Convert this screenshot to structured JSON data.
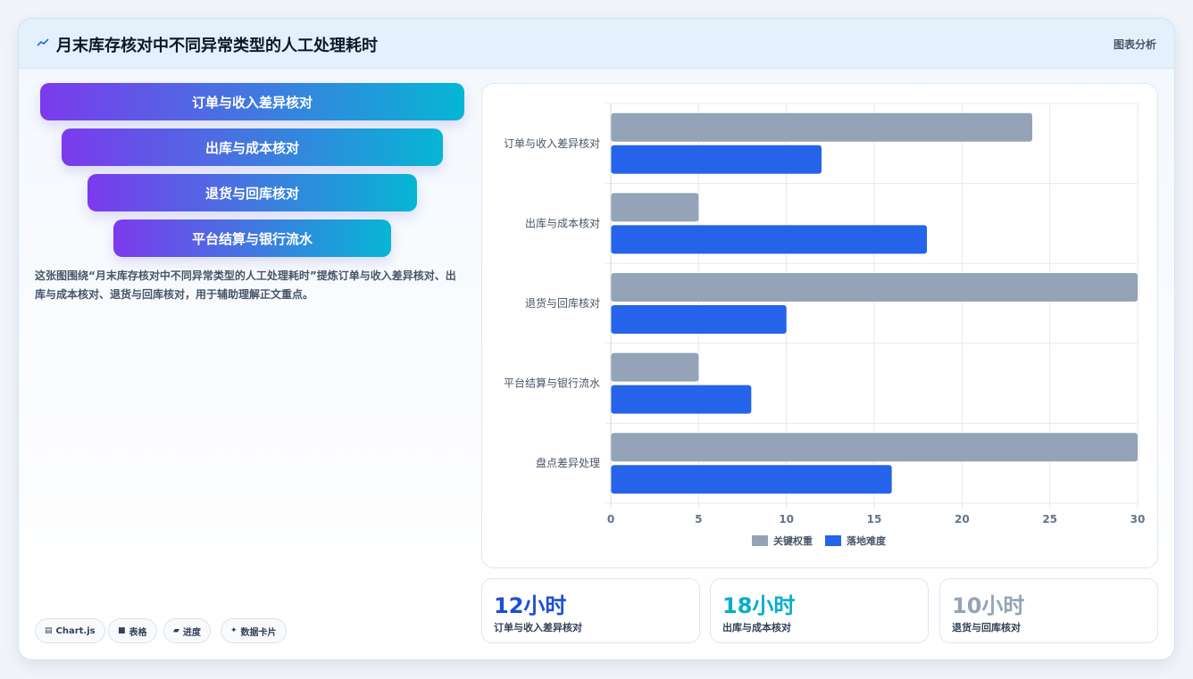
{
  "header": {
    "title": "月末库存核对中不同异常类型的人工处理耗时",
    "tag": "图表分析"
  },
  "funnel": [
    "订单与收入差异核对",
    "出库与成本核对",
    "退货与回库核对",
    "平台结算与银行流水"
  ],
  "description": "这张图围绕“月末库存核对中不同异常类型的人工处理耗时”提炼订单与收入差异核对、出库与成本核对、退货与回库核对，用于辅助理解正文重点。",
  "chips": [
    {
      "icon": "▤",
      "label": "Chart.js"
    },
    {
      "icon": "■",
      "label": "表格"
    },
    {
      "icon": "▰",
      "label": "进度"
    },
    {
      "icon": "✦",
      "label": "数据卡片"
    }
  ],
  "stats": [
    {
      "value": "12小时",
      "label": "订单与收入差异核对",
      "color": "#1d4ed8"
    },
    {
      "value": "18小时",
      "label": "出库与成本核对",
      "color": "#06aecb"
    },
    {
      "value": "10小时",
      "label": "退货与回库核对",
      "color": "#94a3b8"
    }
  ],
  "chart_data": {
    "type": "bar",
    "orientation": "horizontal",
    "categories": [
      "订单与收入差异核对",
      "出库与成本核对",
      "退货与回库核对",
      "平台结算与银行流水",
      "盘点差异处理"
    ],
    "series": [
      {
        "name": "关键权重",
        "color": "#94a3b8",
        "values": [
          24,
          5,
          30,
          5,
          30
        ]
      },
      {
        "name": "落地难度",
        "color": "#2563eb",
        "values": [
          12,
          18,
          10,
          8,
          16
        ]
      }
    ],
    "xlim": [
      0,
      30
    ],
    "xticks": [
      0,
      5,
      10,
      15,
      20,
      25,
      30
    ],
    "grid": true,
    "legend": "bottom"
  }
}
